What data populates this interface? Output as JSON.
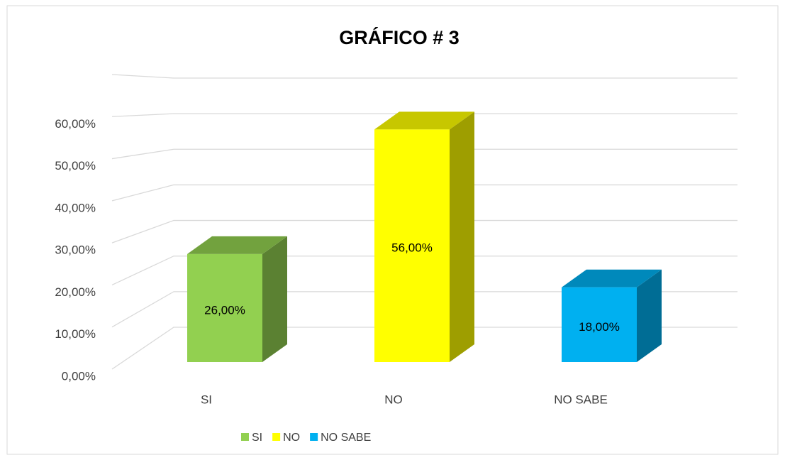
{
  "chart_data": {
    "type": "bar3d",
    "title": "GRÁFICO # 3",
    "categories": [
      "SI",
      "NO",
      "NO SABE"
    ],
    "values": [
      26,
      56,
      18
    ],
    "value_labels": [
      "26,00%",
      "56,00%",
      "18,00%"
    ],
    "colors": [
      "#92d050",
      "#ffff00",
      "#00b0f0"
    ],
    "ylim": [
      0,
      70
    ],
    "yticks": [
      {
        "value": 0,
        "label": "0,00%"
      },
      {
        "value": 10,
        "label": "10,00%"
      },
      {
        "value": 20,
        "label": "20,00%"
      },
      {
        "value": 30,
        "label": "30,00%"
      },
      {
        "value": 40,
        "label": "40,00%"
      },
      {
        "value": 50,
        "label": "50,00%"
      },
      {
        "value": 60,
        "label": "60,00%"
      }
    ],
    "grid": true,
    "legend": "bottom"
  }
}
